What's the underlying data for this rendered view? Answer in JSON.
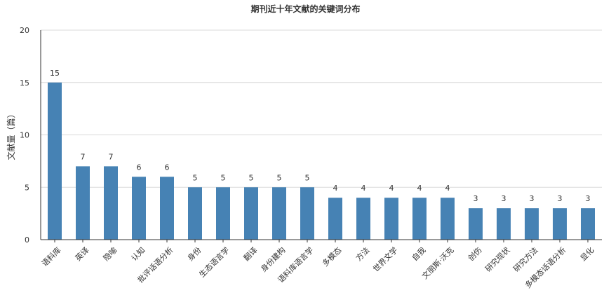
{
  "chart_data": {
    "type": "bar",
    "title": "期刊近十年文献的关键词分布",
    "ylabel": "文献量（篇）",
    "xlabel": "",
    "ylim": [
      0,
      20
    ],
    "yticks": [
      0,
      5,
      10,
      15,
      20
    ],
    "grid": true,
    "bar_color": "#4682b4",
    "categories": [
      "语料库",
      "英译",
      "隐喻",
      "认知",
      "批评话语分析",
      "身份",
      "生态语言学",
      "翻译",
      "身份建构",
      "语料库语言学",
      "多模态",
      "方法",
      "世界文学",
      "自我",
      "文丽斯·沃克",
      "创伤",
      "研究现状",
      "研究方法",
      "多模态话语分析",
      "显化"
    ],
    "values": [
      15,
      7,
      7,
      6,
      6,
      5,
      5,
      5,
      5,
      5,
      4,
      4,
      4,
      4,
      4,
      3,
      3,
      3,
      3,
      3
    ]
  }
}
